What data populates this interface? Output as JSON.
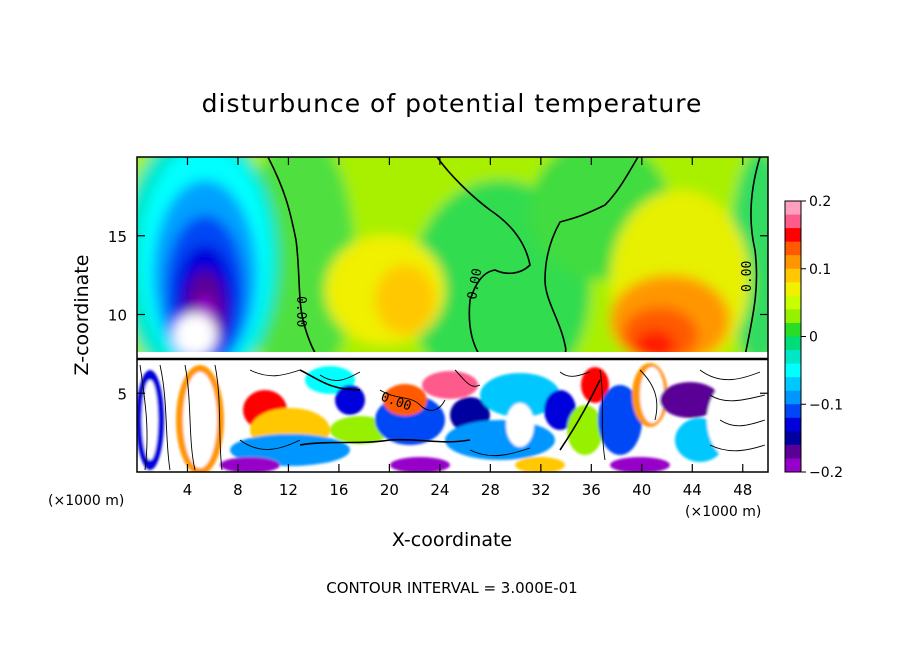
{
  "chart_data": {
    "type": "heatmap",
    "title": "disturbunce of potential temperature",
    "xlabel": "X-coordinate",
    "ylabel": "Z-coordinate",
    "x_unit": "(×1000 m)",
    "y_unit": "",
    "xlim": [
      0,
      50
    ],
    "ylim": [
      0,
      20
    ],
    "x_ticks": [
      4,
      8,
      12,
      16,
      20,
      24,
      28,
      32,
      36,
      40,
      44,
      48
    ],
    "y_ticks": [
      5,
      10,
      15
    ],
    "colorbar": {
      "range": [
        -0.2,
        0.2
      ],
      "tick_values": [
        0.2,
        0.1,
        0,
        -0.1,
        -0.2
      ],
      "tick_labels": [
        "0.2",
        "0.1",
        "0",
        "−0.1",
        "−0.2"
      ],
      "colors": [
        "#ff9fbf",
        "#ff5a8c",
        "#ff0000",
        "#ff5a00",
        "#ff9600",
        "#ffc800",
        "#f0f000",
        "#c8ff00",
        "#96f000",
        "#28dc28",
        "#00dc78",
        "#00e6c8",
        "#00ffff",
        "#00c8ff",
        "#0096ff",
        "#0046f5",
        "#0000dc",
        "#0000a0",
        "#5a0096",
        "#9600c8"
      ]
    },
    "contour_labels": [
      "0.00",
      "0.00",
      "0.00",
      "0.00"
    ],
    "annotation": "CONTOUR INTERVAL = 3.000E-01",
    "features": [
      {
        "name": "cold anomaly upper left",
        "x": 4.5,
        "z": 14,
        "value": -0.18
      },
      {
        "name": "warm anomaly upper right",
        "x": 41,
        "z": 10.5,
        "value": 0.13
      },
      {
        "name": "warm band",
        "x": 20,
        "z": 13,
        "value": 0.05
      },
      {
        "name": "neutral zone",
        "x": 30,
        "z": 12,
        "value": 0.0
      }
    ],
    "grid": false
  }
}
